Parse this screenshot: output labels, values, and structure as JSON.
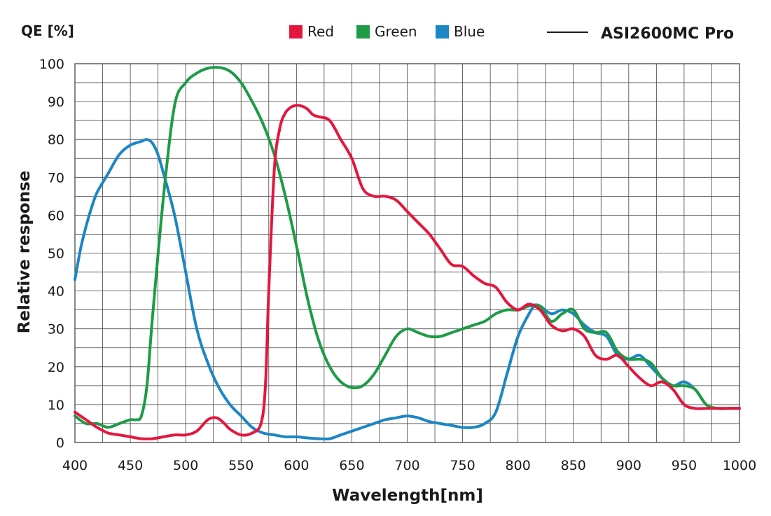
{
  "chart_data": {
    "type": "line",
    "title": "",
    "unit_label": "QE [%]",
    "model_label": "ASI2600MC Pro",
    "xlabel": "Wavelength[nm]",
    "ylabel": "Relative response",
    "xlim": [
      400,
      1000
    ],
    "ylim": [
      0,
      100
    ],
    "xticks": [
      400,
      450,
      500,
      550,
      600,
      650,
      700,
      750,
      800,
      850,
      900,
      950,
      1000
    ],
    "yticks": [
      0,
      10,
      20,
      30,
      40,
      50,
      60,
      70,
      80,
      90,
      100
    ],
    "grid": true,
    "legend": "top-center",
    "series": [
      {
        "name": "Red",
        "color": "#e3173e",
        "x": [
          400,
          410,
          420,
          430,
          440,
          450,
          460,
          470,
          480,
          490,
          500,
          510,
          520,
          528,
          535,
          540,
          550,
          560,
          568,
          572,
          575,
          580,
          585,
          590,
          595,
          600,
          605,
          610,
          615,
          620,
          630,
          640,
          650,
          660,
          670,
          680,
          690,
          700,
          710,
          720,
          730,
          740,
          750,
          760,
          770,
          780,
          790,
          800,
          810,
          820,
          830,
          840,
          850,
          860,
          870,
          880,
          890,
          900,
          910,
          920,
          930,
          940,
          950,
          960,
          970,
          980,
          990,
          1000
        ],
        "y": [
          8,
          6,
          4,
          2.5,
          2,
          1.5,
          1,
          1,
          1.5,
          2,
          2,
          3,
          6,
          6.5,
          5,
          3.5,
          2,
          2.5,
          5,
          15,
          40,
          72,
          83,
          87,
          88.5,
          89,
          88.8,
          88,
          86.5,
          86,
          85,
          80,
          75,
          67,
          65,
          65,
          64,
          61,
          58,
          55,
          51,
          47,
          46.5,
          44,
          42,
          41,
          37,
          35,
          36.5,
          35,
          31,
          29.5,
          30,
          28,
          23,
          22,
          23,
          20,
          17,
          15,
          16,
          14,
          10,
          9,
          9,
          9,
          9,
          9
        ]
      },
      {
        "name": "Green",
        "color": "#1e9b47",
        "x": [
          400,
          410,
          420,
          430,
          440,
          450,
          455,
          460,
          465,
          470,
          480,
          490,
          500,
          510,
          520,
          530,
          540,
          550,
          560,
          570,
          580,
          590,
          600,
          610,
          620,
          630,
          640,
          650,
          660,
          670,
          680,
          690,
          700,
          710,
          720,
          730,
          740,
          750,
          760,
          770,
          780,
          790,
          800,
          810,
          820,
          830,
          840,
          850,
          860,
          870,
          880,
          890,
          900,
          910,
          920,
          930,
          940,
          950,
          960,
          970,
          980,
          990,
          1000
        ],
        "y": [
          7,
          5,
          5,
          4,
          5,
          6,
          6,
          7,
          15,
          33,
          65,
          89,
          95,
          97.5,
          98.8,
          99,
          98,
          95,
          90,
          84,
          76,
          65,
          52,
          38,
          27,
          20,
          16,
          14.5,
          15,
          18,
          23,
          28,
          30,
          29,
          28,
          28,
          29,
          30,
          31,
          32,
          34,
          35,
          35,
          36,
          36,
          32,
          34,
          35,
          30,
          29,
          29,
          24,
          22,
          22,
          21,
          17,
          15,
          15,
          14,
          10,
          9,
          9,
          9
        ]
      },
      {
        "name": "Blue",
        "color": "#1d86c4",
        "x": [
          400,
          405,
          410,
          415,
          420,
          430,
          440,
          450,
          460,
          465,
          470,
          475,
          480,
          490,
          500,
          510,
          520,
          530,
          540,
          550,
          560,
          570,
          580,
          590,
          600,
          610,
          620,
          630,
          640,
          650,
          660,
          670,
          680,
          690,
          700,
          710,
          720,
          730,
          740,
          750,
          760,
          770,
          780,
          790,
          800,
          810,
          815,
          820,
          830,
          840,
          850,
          860,
          870,
          880,
          890,
          900,
          910,
          920,
          930,
          940,
          950,
          960,
          970,
          980,
          990,
          1000
        ],
        "y": [
          43,
          51,
          57,
          62,
          66,
          71,
          76,
          78.5,
          79.5,
          80,
          79,
          76,
          71,
          60,
          45,
          30,
          21,
          14.5,
          10,
          7,
          4,
          2.5,
          2,
          1.5,
          1.5,
          1.2,
          1,
          1,
          2,
          3,
          4,
          5,
          6,
          6.5,
          7,
          6.5,
          5.5,
          5,
          4.5,
          4,
          4,
          5,
          8,
          18,
          28,
          34,
          36,
          36,
          34,
          35,
          34,
          31,
          29,
          28,
          23,
          22,
          23,
          20,
          17,
          15,
          16,
          14,
          10,
          9,
          9,
          9
        ]
      }
    ],
    "model_series": {
      "name": "ASI2600MC Pro",
      "color": "#1a1a1a"
    }
  }
}
